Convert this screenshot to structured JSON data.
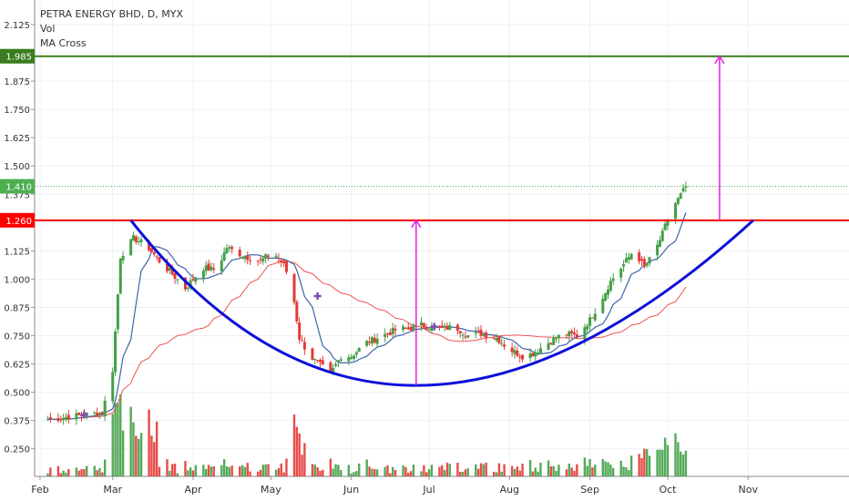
{
  "chart_data": {
    "type": "candlestick",
    "title": "PETRA ENERGY BHD, D, MYX",
    "indicators": [
      "Vol",
      "MA Cross"
    ],
    "x_labels": [
      "Feb",
      "Mar",
      "Apr",
      "May",
      "Jun",
      "Jul",
      "Aug",
      "Sep",
      "Oct",
      "Nov"
    ],
    "x_label_offsets": [
      0,
      28,
      59,
      89,
      120,
      150,
      181,
      212,
      242,
      273
    ],
    "x_start_date": "2019-02-01",
    "y_ticks": [
      0.25,
      0.375,
      0.5,
      0.625,
      0.75,
      0.875,
      1.0,
      1.125,
      1.25,
      1.375,
      1.5,
      1.625,
      1.75,
      1.875,
      2.0,
      2.125
    ],
    "y_tick_labels": [
      "0.250",
      "0.375",
      "0.500",
      "0.625",
      "0.750",
      "0.875",
      "1.000",
      "1.125",
      "1.250",
      "1.375",
      "1.500",
      "1.625",
      "1.750",
      "1.875",
      "2.000",
      "2.125"
    ],
    "ylim": [
      0.125,
      2.19
    ],
    "price_labels": [
      {
        "value": 1.985,
        "text": "1.985",
        "color": "#3a7d1e"
      },
      {
        "value": 1.41,
        "text": "1.410",
        "color": "#4caf50"
      },
      {
        "value": 1.26,
        "text": "1.260",
        "color": "#ff0000"
      }
    ],
    "close_anchors": [
      [
        3,
        0.38
      ],
      [
        10,
        0.39
      ],
      [
        17,
        0.4
      ],
      [
        24,
        0.41
      ],
      [
        28,
        0.6
      ],
      [
        31,
        1.1
      ],
      [
        36,
        1.18
      ],
      [
        41,
        1.15
      ],
      [
        46,
        1.08
      ],
      [
        52,
        1.01
      ],
      [
        56,
        0.96
      ],
      [
        63,
        1.05
      ],
      [
        68,
        1.04
      ],
      [
        72,
        1.14
      ],
      [
        79,
        1.1
      ],
      [
        85,
        1.08
      ],
      [
        90,
        1.12
      ],
      [
        94,
        1.06
      ],
      [
        97,
        0.98
      ],
      [
        100,
        0.74
      ],
      [
        104,
        0.66
      ],
      [
        108,
        0.62
      ],
      [
        112,
        0.58
      ],
      [
        116,
        0.66
      ],
      [
        120,
        0.66
      ],
      [
        126,
        0.72
      ],
      [
        132,
        0.75
      ],
      [
        138,
        0.78
      ],
      [
        142,
        0.78
      ],
      [
        146,
        0.8
      ],
      [
        150,
        0.79
      ],
      [
        155,
        0.78
      ],
      [
        160,
        0.79
      ],
      [
        165,
        0.75
      ],
      [
        170,
        0.76
      ],
      [
        176,
        0.74
      ],
      [
        181,
        0.69
      ],
      [
        186,
        0.66
      ],
      [
        190,
        0.67
      ],
      [
        196,
        0.72
      ],
      [
        202,
        0.76
      ],
      [
        207,
        0.75
      ],
      [
        212,
        0.82
      ],
      [
        216,
        0.9
      ],
      [
        220,
        0.99
      ],
      [
        226,
        1.08
      ],
      [
        229,
        1.13
      ],
      [
        233,
        1.05
      ],
      [
        237,
        1.12
      ],
      [
        240,
        1.2
      ],
      [
        243,
        1.3
      ],
      [
        247,
        1.37
      ],
      [
        249,
        1.41
      ]
    ],
    "resistance_level": 1.26,
    "target_level": 1.985,
    "cup_curve": [
      [
        35,
        1.26
      ],
      [
        145,
        0.53
      ],
      [
        275,
        1.26
      ]
    ],
    "measure_arrows": [
      {
        "x": 145,
        "from": 0.53,
        "to": 1.26
      },
      {
        "x": 262,
        "from": 1.26,
        "to": 1.985
      }
    ],
    "ma_cross_markers": [
      {
        "x": 17,
        "value": 0.4
      },
      {
        "x": 107,
        "value": 0.925
      },
      {
        "x": 152,
        "value": 0.79
      }
    ],
    "colors": {
      "up": "#43a047",
      "down": "#e53935",
      "ma_fast": "#3f64a8",
      "ma_slow": "#ef5350",
      "cup": "#0d10d8",
      "arrow": "#e91ee0",
      "cross": "#7b4fb0"
    }
  }
}
